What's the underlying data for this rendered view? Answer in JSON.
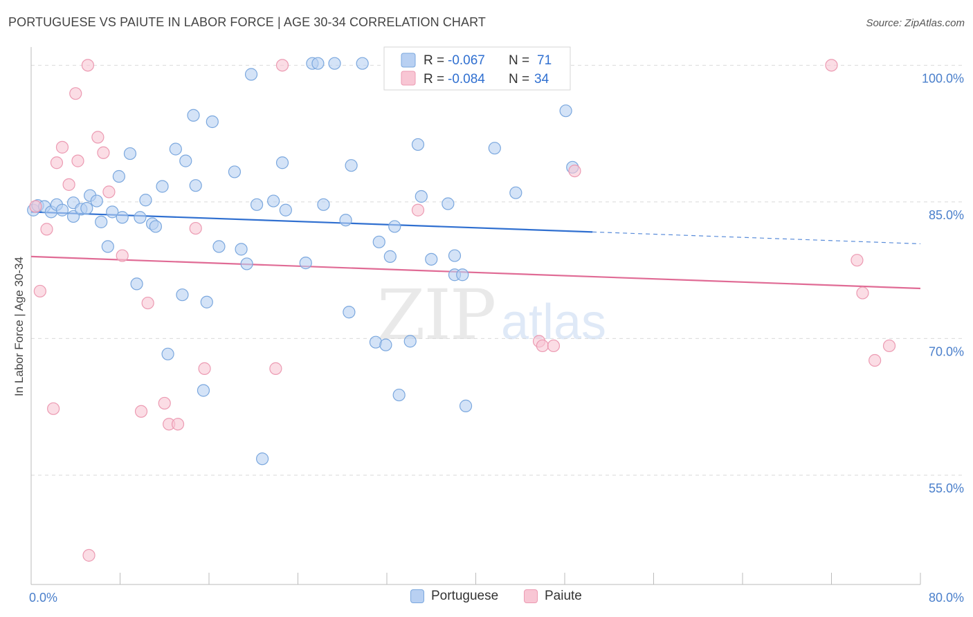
{
  "title": "PORTUGUESE VS PAIUTE IN LABOR FORCE | AGE 30-34 CORRELATION CHART",
  "source": "Source: ZipAtlas.com",
  "watermark": {
    "zip": "ZIP",
    "atlas": "atlas"
  },
  "colors": {
    "blue_fill": "#b8d0f2",
    "blue_stroke": "#7aa7de",
    "blue_line": "#2f6fd0",
    "pink_fill": "#f8c6d4",
    "pink_stroke": "#ec9ab2",
    "pink_line": "#e06b95",
    "tick_label": "#4a7fcb",
    "grid": "#d9d9d9"
  },
  "legend_top": {
    "rows": [
      {
        "r_label": "R =",
        "r_value": "-0.067",
        "n_label": "N =",
        "n_value": "71"
      },
      {
        "r_label": "R =",
        "r_value": "-0.084",
        "n_label": "N =",
        "n_value": "34"
      }
    ]
  },
  "chart_data": {
    "type": "scatter",
    "title": "PORTUGUESE VS PAIUTE IN LABOR FORCE | AGE 30-34 CORRELATION CHART",
    "xlabel": "",
    "ylabel": "In Labor Force | Age 30-34",
    "xlim": [
      0,
      80
    ],
    "ylim": [
      43,
      102
    ],
    "x_tick_labels": [
      "0.0%",
      "80.0%"
    ],
    "y_ticks": [
      {
        "value": 55,
        "label": "55.0%"
      },
      {
        "value": 70,
        "label": "70.0%"
      },
      {
        "value": 85,
        "label": "85.0%"
      },
      {
        "value": 100,
        "label": "100.0%"
      }
    ],
    "grid": true,
    "legend": [
      "Portuguese",
      "Paiute"
    ],
    "series": [
      {
        "name": "Portuguese",
        "r": -0.067,
        "n": 71,
        "trend": {
          "x0": 0,
          "y0": 83.9,
          "x1": 50.5,
          "y1": 81.7,
          "dash_to_x": 80,
          "dash_to_y": 80.4
        },
        "points": [
          [
            0.2,
            84.1
          ],
          [
            0.6,
            84.6
          ],
          [
            1.2,
            84.5
          ],
          [
            1.8,
            83.9
          ],
          [
            2.3,
            84.7
          ],
          [
            2.8,
            84.1
          ],
          [
            3.8,
            84.9
          ],
          [
            3.8,
            83.4
          ],
          [
            4.5,
            84.2
          ],
          [
            5.0,
            84.3
          ],
          [
            5.3,
            85.7
          ],
          [
            5.9,
            85.1
          ],
          [
            6.3,
            82.8
          ],
          [
            6.9,
            80.1
          ],
          [
            7.3,
            83.9
          ],
          [
            7.9,
            87.8
          ],
          [
            8.2,
            83.3
          ],
          [
            8.9,
            90.3
          ],
          [
            9.5,
            76.0
          ],
          [
            9.8,
            83.3
          ],
          [
            10.3,
            85.2
          ],
          [
            10.9,
            82.6
          ],
          [
            11.2,
            82.3
          ],
          [
            11.8,
            86.7
          ],
          [
            12.3,
            68.3
          ],
          [
            13.0,
            90.8
          ],
          [
            13.6,
            74.8
          ],
          [
            13.9,
            89.5
          ],
          [
            14.6,
            94.5
          ],
          [
            14.8,
            86.8
          ],
          [
            15.5,
            64.3
          ],
          [
            15.8,
            74.0
          ],
          [
            16.3,
            93.8
          ],
          [
            16.9,
            80.1
          ],
          [
            18.3,
            88.3
          ],
          [
            18.9,
            79.8
          ],
          [
            19.4,
            78.2
          ],
          [
            19.8,
            99.0
          ],
          [
            20.3,
            84.7
          ],
          [
            20.8,
            56.8
          ],
          [
            21.8,
            85.1
          ],
          [
            22.6,
            89.3
          ],
          [
            22.9,
            84.1
          ],
          [
            24.7,
            78.3
          ],
          [
            25.3,
            100.2
          ],
          [
            25.8,
            100.2
          ],
          [
            27.3,
            100.2
          ],
          [
            26.3,
            84.7
          ],
          [
            28.3,
            83.0
          ],
          [
            28.6,
            72.9
          ],
          [
            28.8,
            89.0
          ],
          [
            29.8,
            100.2
          ],
          [
            31.0,
            69.6
          ],
          [
            31.3,
            80.6
          ],
          [
            31.9,
            69.3
          ],
          [
            32.3,
            79.0
          ],
          [
            32.7,
            82.3
          ],
          [
            33.1,
            63.8
          ],
          [
            34.1,
            69.7
          ],
          [
            34.8,
            91.3
          ],
          [
            35.1,
            85.6
          ],
          [
            36.0,
            78.7
          ],
          [
            37.5,
            84.8
          ],
          [
            38.1,
            79.1
          ],
          [
            38.1,
            77.0
          ],
          [
            38.8,
            77.0
          ],
          [
            39.1,
            62.6
          ],
          [
            41.7,
            90.9
          ],
          [
            43.6,
            86.0
          ],
          [
            48.1,
            95.0
          ],
          [
            48.7,
            88.8
          ]
        ]
      },
      {
        "name": "Paiute",
        "r": -0.084,
        "n": 34,
        "trend": {
          "x0": 0,
          "y0": 79.0,
          "x1": 80,
          "y1": 75.5
        },
        "points": [
          [
            0.4,
            84.5
          ],
          [
            0.8,
            75.2
          ],
          [
            1.4,
            82.0
          ],
          [
            2.0,
            62.3
          ],
          [
            2.3,
            89.3
          ],
          [
            2.8,
            91.0
          ],
          [
            3.4,
            86.9
          ],
          [
            4.0,
            96.9
          ],
          [
            4.2,
            89.5
          ],
          [
            5.1,
            100.0
          ],
          [
            5.2,
            46.2
          ],
          [
            6.0,
            92.1
          ],
          [
            6.5,
            90.4
          ],
          [
            7.0,
            86.1
          ],
          [
            8.2,
            79.1
          ],
          [
            9.9,
            62.0
          ],
          [
            10.5,
            73.9
          ],
          [
            12.0,
            62.9
          ],
          [
            12.4,
            60.6
          ],
          [
            13.2,
            60.6
          ],
          [
            14.8,
            82.1
          ],
          [
            15.6,
            66.7
          ],
          [
            22.0,
            66.7
          ],
          [
            22.6,
            100.0
          ],
          [
            34.8,
            84.1
          ],
          [
            45.7,
            69.7
          ],
          [
            46.0,
            69.2
          ],
          [
            47.0,
            69.2
          ],
          [
            48.9,
            88.4
          ],
          [
            72.0,
            100.0
          ],
          [
            74.3,
            78.6
          ],
          [
            74.8,
            75.0
          ],
          [
            75.9,
            67.6
          ],
          [
            77.2,
            69.2
          ]
        ]
      }
    ]
  }
}
